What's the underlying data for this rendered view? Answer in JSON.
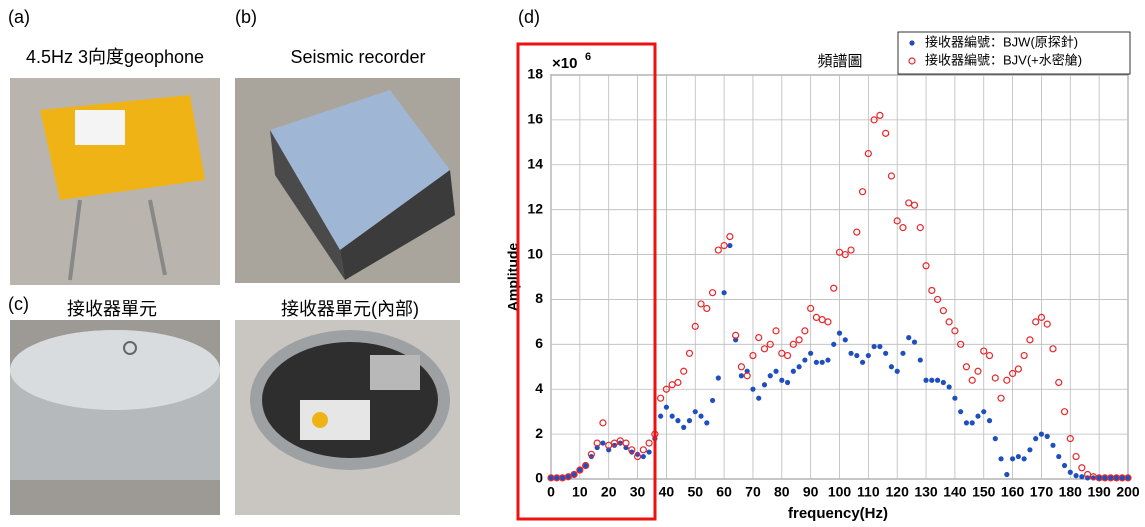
{
  "panels": {
    "a_label": "(a)",
    "a_caption": "4.5Hz 3向度geophone",
    "b_label": "(b)",
    "b_caption": "Seismic recorder",
    "c_label": "(c)",
    "c_caption_left": "接收器單元",
    "c_caption_right": "接收器單元(內部)",
    "d_label": "(d)"
  },
  "chart_data": {
    "type": "scatter",
    "title": "頻譜圖",
    "x_label": "frequency(Hz)",
    "y_label": "Amplitude",
    "y_multiplier_base": "×10",
    "y_multiplier_exponent": "6",
    "x": [
      0,
      2,
      4,
      6,
      8,
      10,
      12,
      14,
      16,
      18,
      20,
      22,
      24,
      26,
      28,
      30,
      32,
      34,
      36,
      38,
      40,
      42,
      44,
      46,
      48,
      50,
      52,
      54,
      56,
      58,
      60,
      62,
      64,
      66,
      68,
      70,
      72,
      74,
      76,
      78,
      80,
      82,
      84,
      86,
      88,
      90,
      92,
      94,
      96,
      98,
      100,
      102,
      104,
      106,
      108,
      110,
      112,
      114,
      116,
      118,
      120,
      122,
      124,
      126,
      128,
      130,
      132,
      134,
      136,
      138,
      140,
      142,
      144,
      146,
      148,
      150,
      152,
      154,
      156,
      158,
      160,
      162,
      164,
      166,
      168,
      170,
      172,
      174,
      176,
      178,
      180,
      182,
      184,
      186,
      188,
      190,
      192,
      194,
      196,
      198,
      200
    ],
    "series": [
      {
        "name": "接收器編號：BJW(原探針)",
        "color": "#1f4fbf",
        "marker": "filled",
        "values": [
          0.05,
          0.05,
          0.05,
          0.1,
          0.2,
          0.4,
          0.6,
          1.0,
          1.4,
          1.6,
          1.3,
          1.5,
          1.6,
          1.4,
          1.2,
          1.1,
          1.0,
          1.2,
          1.8,
          2.8,
          3.2,
          2.8,
          2.6,
          2.3,
          2.6,
          3.0,
          2.8,
          2.5,
          3.5,
          4.5,
          8.3,
          10.4,
          6.2,
          4.6,
          4.8,
          4.0,
          3.6,
          4.2,
          4.6,
          4.8,
          4.4,
          4.3,
          4.8,
          5.0,
          5.3,
          5.6,
          5.2,
          5.2,
          5.3,
          6.0,
          6.5,
          6.2,
          5.6,
          5.5,
          5.2,
          5.5,
          5.9,
          5.9,
          5.6,
          5.0,
          4.8,
          5.6,
          6.3,
          6.1,
          5.3,
          4.4,
          4.4,
          4.4,
          4.3,
          4.1,
          3.6,
          3.0,
          2.5,
          2.5,
          2.8,
          3.0,
          2.6,
          1.8,
          0.9,
          0.2,
          0.9,
          1.0,
          0.9,
          1.3,
          1.8,
          2.0,
          1.9,
          1.5,
          1.0,
          0.6,
          0.3,
          0.15,
          0.1,
          0.05,
          0.05,
          0.05,
          0.05,
          0.05,
          0.05,
          0.05,
          0.05
        ]
      },
      {
        "name": "接收器編號：BJV(+水密艙)",
        "color": "#e8262a",
        "marker": "hollow",
        "values": [
          0.05,
          0.05,
          0.05,
          0.1,
          0.2,
          0.4,
          0.6,
          1.1,
          1.6,
          2.5,
          1.5,
          1.6,
          1.7,
          1.6,
          1.3,
          1.0,
          1.3,
          1.6,
          2.0,
          3.6,
          4.0,
          4.2,
          4.3,
          4.8,
          5.6,
          6.8,
          7.8,
          7.6,
          8.3,
          10.2,
          10.4,
          10.8,
          6.4,
          5.0,
          4.6,
          5.5,
          6.3,
          5.8,
          6.0,
          6.6,
          5.6,
          5.5,
          6.0,
          6.2,
          6.6,
          7.6,
          7.2,
          7.1,
          7.0,
          8.5,
          10.1,
          10.0,
          10.2,
          11.0,
          12.8,
          14.5,
          16.0,
          16.2,
          15.4,
          13.5,
          11.5,
          11.2,
          12.3,
          12.2,
          11.2,
          9.5,
          8.4,
          8.0,
          7.5,
          7.0,
          6.6,
          6.0,
          5.0,
          4.4,
          4.8,
          5.7,
          5.5,
          4.5,
          3.6,
          4.4,
          4.7,
          4.9,
          5.5,
          6.2,
          7.0,
          7.2,
          6.9,
          5.8,
          4.3,
          3.0,
          1.8,
          1.0,
          0.5,
          0.2,
          0.1,
          0.05,
          0.05,
          0.05,
          0.05,
          0.05,
          0.05
        ]
      }
    ],
    "xlim": [
      0,
      200
    ],
    "xticks": [
      0,
      10,
      20,
      30,
      40,
      50,
      60,
      70,
      80,
      90,
      100,
      110,
      120,
      130,
      140,
      150,
      160,
      170,
      180,
      190,
      200
    ],
    "ylim": [
      0,
      18
    ],
    "yticks": [
      0,
      2,
      4,
      6,
      8,
      10,
      12,
      14,
      16,
      18
    ],
    "grid": true,
    "legend": "upper right"
  }
}
